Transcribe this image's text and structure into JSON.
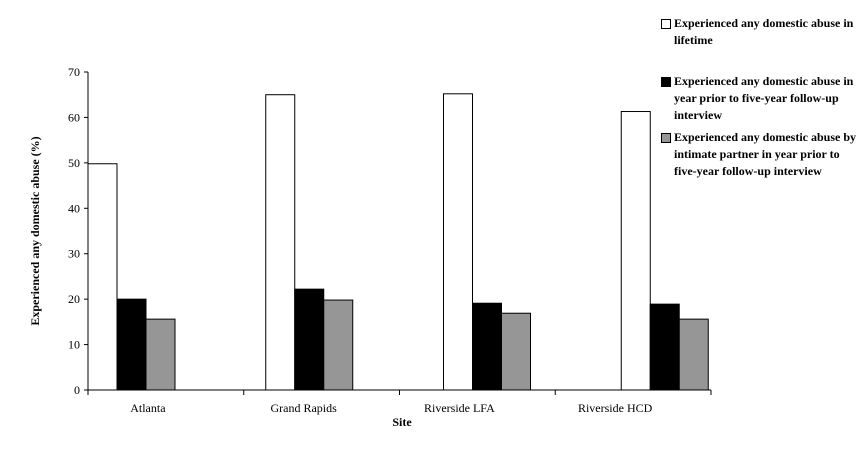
{
  "chart_data": {
    "type": "bar",
    "title": "",
    "xlabel": "Site",
    "ylabel": "Experienced any domestic abuse (%)",
    "ylim": [
      0,
      70
    ],
    "yticks": [
      0,
      10,
      20,
      30,
      40,
      50,
      60,
      70
    ],
    "categories": [
      "Atlanta",
      "Grand Rapids",
      "Riverside LFA",
      "Riverside HCD"
    ],
    "grid": false,
    "legend_position": "top-right",
    "series": [
      {
        "name": "Experienced any domestic abuse in lifetime",
        "color": "#ffffff",
        "values": [
          49.8,
          65.0,
          65.2,
          61.3
        ]
      },
      {
        "name": "Experienced any domestic abuse in year prior to five-year follow-up interview",
        "color": "#000000",
        "values": [
          20.0,
          22.2,
          19.1,
          18.9
        ]
      },
      {
        "name": "Experienced any domestic abuse by intimate partner in year prior to five-year follow-up interview",
        "color": "#969696",
        "values": [
          15.6,
          19.8,
          16.9,
          15.6
        ]
      }
    ]
  }
}
